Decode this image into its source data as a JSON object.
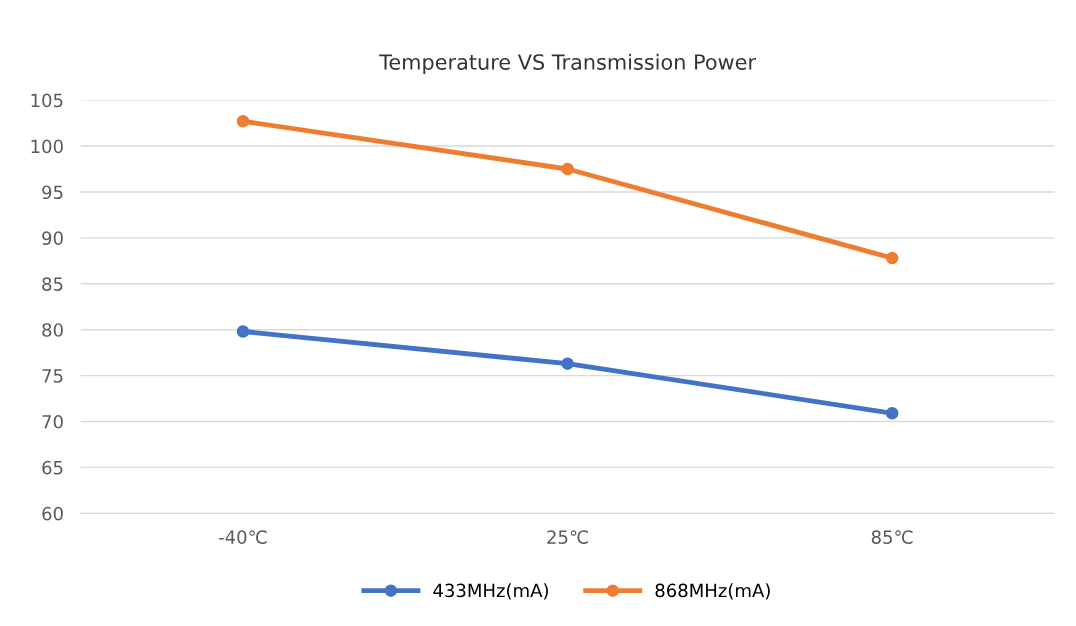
{
  "chart_data": {
    "type": "line",
    "title": "Temperature VS Transmission Power",
    "categories": [
      "-40℃",
      "25℃",
      "85℃"
    ],
    "series": [
      {
        "name": "433MHz(mA)",
        "color": "#4472c4",
        "values": [
          79.8,
          76.3,
          70.9
        ]
      },
      {
        "name": "868MHz(mA)",
        "color": "#ed7d31",
        "values": [
          102.7,
          97.5,
          87.8
        ]
      }
    ],
    "ylim": [
      60,
      105
    ],
    "yticks": [
      60,
      65,
      70,
      75,
      80,
      85,
      90,
      95,
      100,
      105
    ],
    "grid": "y",
    "legend": "bottom",
    "marker": "circle",
    "line_style": "solid"
  }
}
